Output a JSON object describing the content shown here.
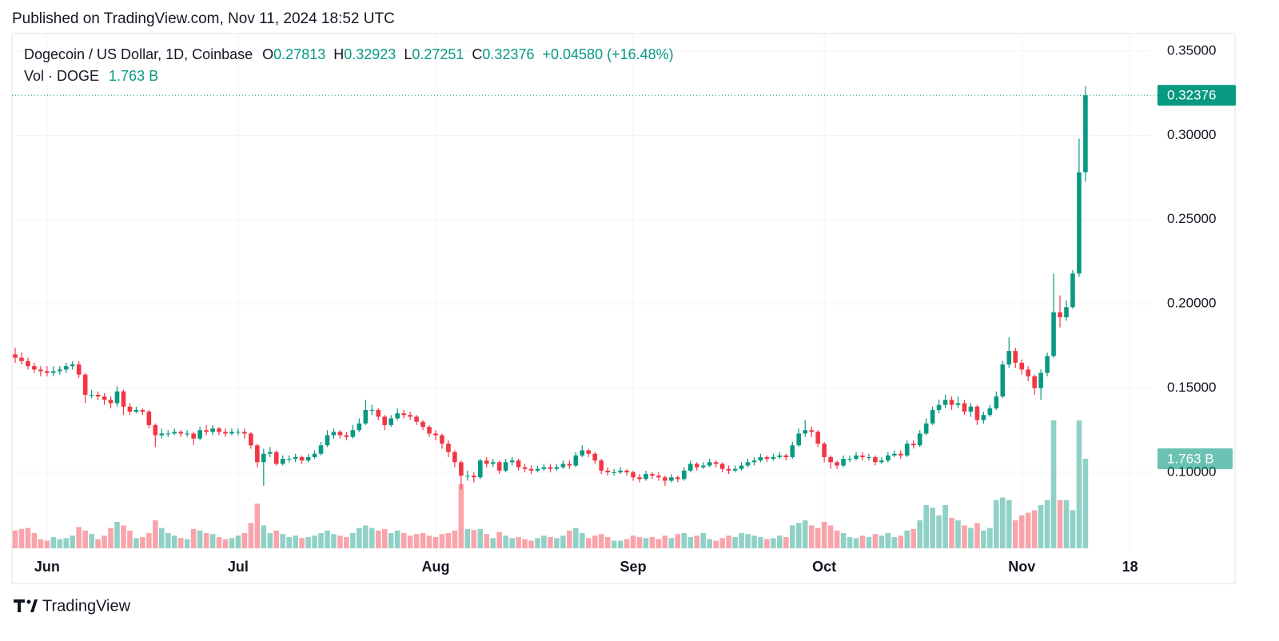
{
  "header": "Published on TradingView.com, Nov 11, 2024 18:52 UTC",
  "footer": "TradingView",
  "chart_data": {
    "type": "candlestick",
    "title": "Dogecoin / US Dollar, 1D, Coinbase",
    "legend_fields": [
      {
        "label": "O",
        "value": "0.27813"
      },
      {
        "label": "H",
        "value": "0.32923"
      },
      {
        "label": "L",
        "value": "0.27251"
      },
      {
        "label": "C",
        "value": "0.32376"
      }
    ],
    "change": "+0.04580 (+16.48%)",
    "volume_title": "Vol · DOGE",
    "volume_label": "1.763 B",
    "up_color": "#089981",
    "down_color": "#f23645",
    "grid": true,
    "xlim": [
      -0.5,
      178.3
    ],
    "xticks": [
      {
        "value": 5,
        "label": "Jun"
      },
      {
        "value": 35,
        "label": "Jul"
      },
      {
        "value": 66,
        "label": "Aug"
      },
      {
        "value": 97,
        "label": "Sep"
      },
      {
        "value": 127,
        "label": "Oct"
      },
      {
        "value": 158,
        "label": "Nov"
      },
      {
        "value": 175,
        "label": "18"
      }
    ],
    "ylim": [
      0.0549,
      0.3604
    ],
    "yticks": [
      {
        "value": 0.1,
        "label": "0.10000"
      },
      {
        "value": 0.15,
        "label": "0.15000"
      },
      {
        "value": 0.2,
        "label": "0.20000"
      },
      {
        "value": 0.25,
        "label": "0.25000"
      },
      {
        "value": 0.3,
        "label": "0.30000"
      },
      {
        "value": 0.35,
        "label": "0.35000"
      }
    ],
    "y2lim": [
      0,
      10.14
    ],
    "open": [
      0.17,
      0.168,
      0.166,
      0.163,
      0.161,
      0.16,
      0.159,
      0.16,
      0.161,
      0.163,
      0.164,
      0.158,
      0.146,
      0.146,
      0.145,
      0.143,
      0.141,
      0.148,
      0.139,
      0.136,
      0.137,
      0.136,
      0.128,
      0.122,
      0.123,
      0.123,
      0.124,
      0.123,
      0.123,
      0.12,
      0.125,
      0.124,
      0.126,
      0.124,
      0.123,
      0.124,
      0.124,
      0.123,
      0.116,
      0.106,
      0.111,
      0.112,
      0.105,
      0.108,
      0.108,
      0.109,
      0.107,
      0.109,
      0.111,
      0.116,
      0.122,
      0.124,
      0.122,
      0.121,
      0.125,
      0.129,
      0.137,
      0.137,
      0.133,
      0.128,
      0.132,
      0.135,
      0.134,
      0.133,
      0.13,
      0.127,
      0.123,
      0.122,
      0.117,
      0.112,
      0.106,
      0.098,
      0.098,
      0.097,
      0.107,
      0.105,
      0.106,
      0.101,
      0.106,
      0.107,
      0.103,
      0.102,
      0.101,
      0.102,
      0.103,
      0.102,
      0.103,
      0.105,
      0.104,
      0.11,
      0.113,
      0.111,
      0.107,
      0.101,
      0.1,
      0.1,
      0.101,
      0.1,
      0.097,
      0.096,
      0.099,
      0.098,
      0.097,
      0.095,
      0.097,
      0.096,
      0.101,
      0.105,
      0.103,
      0.104,
      0.106,
      0.105,
      0.102,
      0.101,
      0.102,
      0.104,
      0.106,
      0.107,
      0.109,
      0.108,
      0.109,
      0.11,
      0.109,
      0.116,
      0.123,
      0.125,
      0.124,
      0.117,
      0.109,
      0.106,
      0.104,
      0.108,
      0.108,
      0.11,
      0.109,
      0.109,
      0.106,
      0.107,
      0.11,
      0.111,
      0.11,
      0.117,
      0.116,
      0.123,
      0.129,
      0.137,
      0.14,
      0.143,
      0.14,
      0.141,
      0.136,
      0.139,
      0.131,
      0.134,
      0.138,
      0.145,
      0.164,
      0.172,
      0.165,
      0.161,
      0.157,
      0.15,
      0.159,
      0.169,
      0.195,
      0.192,
      0.198,
      0.218,
      0.27813
    ],
    "high": [
      0.174,
      0.171,
      0.168,
      0.165,
      0.163,
      0.163,
      0.163,
      0.163,
      0.165,
      0.166,
      0.166,
      0.159,
      0.149,
      0.148,
      0.147,
      0.145,
      0.151,
      0.149,
      0.141,
      0.139,
      0.138,
      0.137,
      0.129,
      0.126,
      0.125,
      0.126,
      0.125,
      0.125,
      0.124,
      0.127,
      0.128,
      0.128,
      0.127,
      0.126,
      0.126,
      0.126,
      0.126,
      0.124,
      0.117,
      0.114,
      0.115,
      0.113,
      0.11,
      0.11,
      0.111,
      0.11,
      0.111,
      0.113,
      0.118,
      0.125,
      0.126,
      0.125,
      0.124,
      0.128,
      0.132,
      0.143,
      0.14,
      0.138,
      0.134,
      0.134,
      0.138,
      0.137,
      0.136,
      0.134,
      0.131,
      0.128,
      0.125,
      0.123,
      0.119,
      0.113,
      0.107,
      0.101,
      0.1,
      0.108,
      0.109,
      0.108,
      0.107,
      0.108,
      0.109,
      0.108,
      0.105,
      0.104,
      0.104,
      0.105,
      0.105,
      0.105,
      0.107,
      0.107,
      0.112,
      0.116,
      0.114,
      0.112,
      0.108,
      0.103,
      0.102,
      0.103,
      0.102,
      0.101,
      0.099,
      0.101,
      0.1,
      0.1,
      0.098,
      0.099,
      0.098,
      0.103,
      0.107,
      0.106,
      0.106,
      0.108,
      0.107,
      0.106,
      0.104,
      0.104,
      0.106,
      0.108,
      0.109,
      0.111,
      0.11,
      0.111,
      0.112,
      0.111,
      0.118,
      0.126,
      0.131,
      0.127,
      0.125,
      0.118,
      0.11,
      0.107,
      0.11,
      0.11,
      0.112,
      0.112,
      0.111,
      0.11,
      0.109,
      0.112,
      0.113,
      0.113,
      0.119,
      0.119,
      0.125,
      0.132,
      0.139,
      0.143,
      0.146,
      0.145,
      0.145,
      0.143,
      0.141,
      0.14,
      0.136,
      0.14,
      0.148,
      0.166,
      0.18,
      0.174,
      0.167,
      0.163,
      0.158,
      0.161,
      0.171,
      0.218,
      0.205,
      0.202,
      0.22,
      0.298,
      0.32923
    ],
    "low": [
      0.165,
      0.164,
      0.161,
      0.159,
      0.157,
      0.157,
      0.157,
      0.158,
      0.159,
      0.161,
      0.156,
      0.141,
      0.144,
      0.143,
      0.14,
      0.138,
      0.139,
      0.134,
      0.134,
      0.135,
      0.134,
      0.126,
      0.115,
      0.12,
      0.121,
      0.122,
      0.121,
      0.121,
      0.116,
      0.119,
      0.122,
      0.122,
      0.122,
      0.121,
      0.122,
      0.122,
      0.12,
      0.114,
      0.103,
      0.092,
      0.109,
      0.104,
      0.104,
      0.106,
      0.106,
      0.105,
      0.106,
      0.108,
      0.11,
      0.115,
      0.12,
      0.12,
      0.119,
      0.12,
      0.124,
      0.128,
      0.134,
      0.131,
      0.125,
      0.127,
      0.131,
      0.132,
      0.131,
      0.128,
      0.125,
      0.121,
      0.119,
      0.114,
      0.109,
      0.103,
      0.09,
      0.095,
      0.094,
      0.096,
      0.103,
      0.103,
      0.099,
      0.1,
      0.104,
      0.101,
      0.1,
      0.099,
      0.1,
      0.101,
      0.1,
      0.101,
      0.102,
      0.102,
      0.103,
      0.109,
      0.109,
      0.105,
      0.099,
      0.098,
      0.098,
      0.099,
      0.098,
      0.095,
      0.094,
      0.095,
      0.096,
      0.095,
      0.092,
      0.094,
      0.094,
      0.095,
      0.1,
      0.101,
      0.102,
      0.103,
      0.103,
      0.1,
      0.099,
      0.1,
      0.101,
      0.103,
      0.104,
      0.106,
      0.106,
      0.107,
      0.108,
      0.107,
      0.108,
      0.115,
      0.121,
      0.121,
      0.115,
      0.106,
      0.102,
      0.102,
      0.103,
      0.106,
      0.107,
      0.107,
      0.107,
      0.104,
      0.105,
      0.106,
      0.109,
      0.108,
      0.109,
      0.114,
      0.115,
      0.122,
      0.128,
      0.135,
      0.138,
      0.137,
      0.138,
      0.134,
      0.133,
      0.128,
      0.129,
      0.133,
      0.137,
      0.144,
      0.162,
      0.162,
      0.158,
      0.154,
      0.146,
      0.143,
      0.157,
      0.168,
      0.186,
      0.19,
      0.197,
      0.216,
      0.27251
    ],
    "close": [
      0.168,
      0.166,
      0.163,
      0.161,
      0.16,
      0.159,
      0.16,
      0.161,
      0.163,
      0.164,
      0.158,
      0.146,
      0.146,
      0.145,
      0.143,
      0.141,
      0.148,
      0.139,
      0.136,
      0.137,
      0.136,
      0.128,
      0.122,
      0.123,
      0.123,
      0.124,
      0.123,
      0.123,
      0.12,
      0.125,
      0.124,
      0.126,
      0.124,
      0.123,
      0.124,
      0.124,
      0.123,
      0.116,
      0.106,
      0.111,
      0.112,
      0.105,
      0.108,
      0.108,
      0.109,
      0.107,
      0.109,
      0.111,
      0.116,
      0.122,
      0.124,
      0.122,
      0.121,
      0.125,
      0.129,
      0.137,
      0.137,
      0.133,
      0.128,
      0.132,
      0.135,
      0.134,
      0.133,
      0.13,
      0.127,
      0.123,
      0.122,
      0.117,
      0.112,
      0.106,
      0.098,
      0.098,
      0.097,
      0.107,
      0.105,
      0.106,
      0.101,
      0.106,
      0.107,
      0.103,
      0.102,
      0.101,
      0.102,
      0.103,
      0.102,
      0.103,
      0.105,
      0.104,
      0.11,
      0.113,
      0.111,
      0.107,
      0.101,
      0.1,
      0.1,
      0.101,
      0.1,
      0.097,
      0.096,
      0.099,
      0.098,
      0.097,
      0.095,
      0.097,
      0.096,
      0.101,
      0.105,
      0.103,
      0.104,
      0.106,
      0.105,
      0.102,
      0.101,
      0.102,
      0.104,
      0.106,
      0.107,
      0.109,
      0.108,
      0.109,
      0.11,
      0.109,
      0.116,
      0.123,
      0.125,
      0.124,
      0.117,
      0.109,
      0.106,
      0.104,
      0.108,
      0.108,
      0.11,
      0.109,
      0.109,
      0.106,
      0.107,
      0.11,
      0.111,
      0.11,
      0.117,
      0.116,
      0.123,
      0.129,
      0.137,
      0.14,
      0.143,
      0.14,
      0.141,
      0.136,
      0.139,
      0.131,
      0.134,
      0.138,
      0.145,
      0.164,
      0.172,
      0.165,
      0.161,
      0.157,
      0.15,
      0.159,
      0.169,
      0.195,
      0.192,
      0.198,
      0.218,
      0.278,
      0.32376
    ],
    "volume": [
      0.35,
      0.38,
      0.4,
      0.3,
      0.18,
      0.15,
      0.22,
      0.18,
      0.2,
      0.25,
      0.42,
      0.35,
      0.28,
      0.18,
      0.25,
      0.4,
      0.52,
      0.45,
      0.35,
      0.2,
      0.22,
      0.3,
      0.55,
      0.4,
      0.3,
      0.25,
      0.2,
      0.18,
      0.38,
      0.35,
      0.3,
      0.28,
      0.22,
      0.18,
      0.2,
      0.25,
      0.3,
      0.5,
      0.88,
      0.45,
      0.3,
      0.35,
      0.28,
      0.22,
      0.25,
      0.2,
      0.22,
      0.25,
      0.3,
      0.35,
      0.28,
      0.25,
      0.22,
      0.3,
      0.4,
      0.45,
      0.4,
      0.35,
      0.38,
      0.3,
      0.35,
      0.3,
      0.25,
      0.28,
      0.3,
      0.25,
      0.22,
      0.28,
      0.3,
      0.35,
      1.27,
      0.38,
      0.36,
      0.38,
      0.28,
      0.2,
      0.32,
      0.25,
      0.2,
      0.22,
      0.18,
      0.15,
      0.2,
      0.25,
      0.22,
      0.2,
      0.25,
      0.35,
      0.4,
      0.3,
      0.2,
      0.25,
      0.28,
      0.22,
      0.15,
      0.15,
      0.18,
      0.25,
      0.22,
      0.2,
      0.22,
      0.18,
      0.25,
      0.2,
      0.28,
      0.3,
      0.22,
      0.25,
      0.3,
      0.18,
      0.15,
      0.2,
      0.25,
      0.22,
      0.3,
      0.28,
      0.25,
      0.22,
      0.18,
      0.2,
      0.25,
      0.22,
      0.45,
      0.5,
      0.55,
      0.45,
      0.4,
      0.52,
      0.45,
      0.35,
      0.3,
      0.22,
      0.2,
      0.25,
      0.22,
      0.28,
      0.25,
      0.3,
      0.22,
      0.25,
      0.35,
      0.38,
      0.55,
      0.85,
      0.8,
      0.65,
      0.85,
      0.6,
      0.55,
      0.45,
      0.4,
      0.5,
      0.35,
      0.4,
      0.95,
      1.0,
      0.95,
      0.55,
      0.65,
      0.7,
      0.75,
      0.85,
      0.95,
      2.52,
      0.95,
      0.95,
      0.75,
      2.52,
      1.763
    ]
  }
}
